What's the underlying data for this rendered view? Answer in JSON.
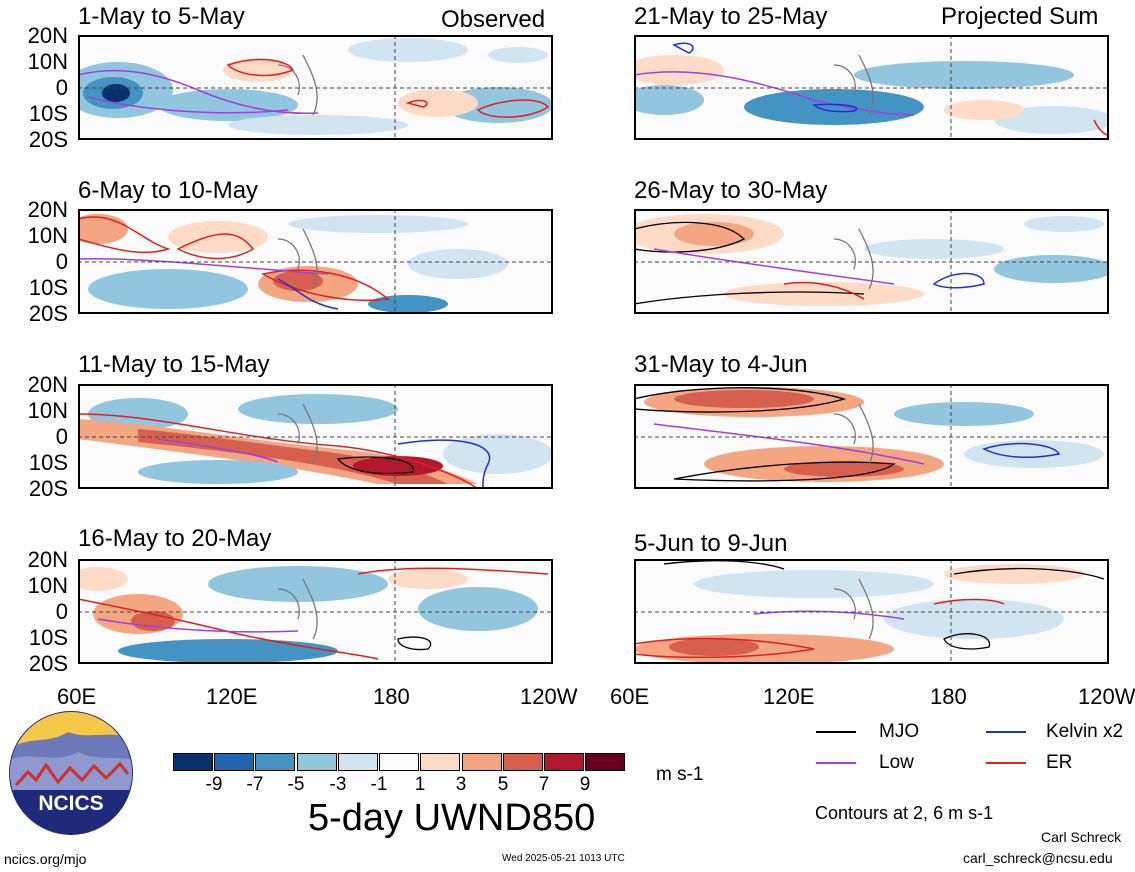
{
  "header": {
    "observed_label": "Observed",
    "projected_label": "Projected Sum"
  },
  "axes": {
    "y_ticks": [
      "20N",
      "10N",
      "0",
      "10S",
      "20S"
    ],
    "x_ticks": [
      "60E",
      "120E",
      "180",
      "120W"
    ]
  },
  "panels": [
    {
      "title": "1-May to 5-May"
    },
    {
      "title": "6-May to 10-May"
    },
    {
      "title": "11-May to 15-May"
    },
    {
      "title": "16-May to 20-May"
    },
    {
      "title": "21-May to 25-May"
    },
    {
      "title": "26-May to 30-May"
    },
    {
      "title": "31-May to 4-Jun"
    },
    {
      "title": "5-Jun to 9-Jun"
    }
  ],
  "colorbar": {
    "labels": [
      "-9",
      "-7",
      "-5",
      "-3",
      "-1",
      "1",
      "3",
      "5",
      "7",
      "9"
    ],
    "colors": [
      "#08306b",
      "#2166ac",
      "#4393c3",
      "#92c5de",
      "#d1e5f0",
      "#fbfbfb",
      "#fddbc7",
      "#f4a582",
      "#d6604d",
      "#b2182b",
      "#67001f"
    ],
    "unit": "m s-1",
    "title": "5-day UWND850"
  },
  "legend": {
    "items": [
      {
        "label": "MJO",
        "color": "#000000"
      },
      {
        "label": "Kelvin x2",
        "color": "#1f2fd6"
      },
      {
        "label": "Low",
        "color": "#a040e0"
      },
      {
        "label": "ER",
        "color": "#e02020"
      }
    ],
    "contours_note": "Contours at 2, 6 m s-1"
  },
  "footer": {
    "logo_text": "NCICS",
    "url": "ncics.org/mjo",
    "timestamp": "Wed 2025-05-21 1013 UTC",
    "author": "Carl Schreck",
    "email": "carl_schreck@ncsu.edu"
  }
}
